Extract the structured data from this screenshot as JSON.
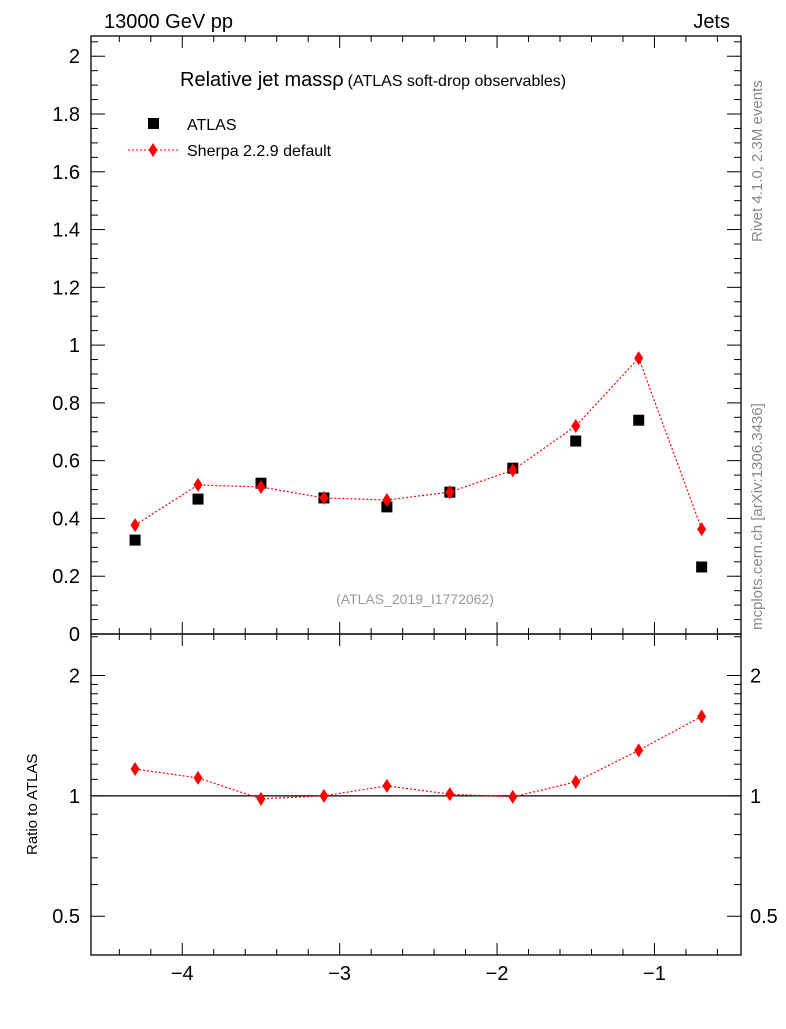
{
  "header": {
    "left": "13000 GeV pp",
    "right": "Jets"
  },
  "side_text": {
    "rivet": "Rivet 4.1.0,  2.3M events",
    "source": "mcplots.cern.ch [arXiv:1306.3436]"
  },
  "chart_data": [
    {
      "type": "scatter",
      "title": "Relative jet massρ",
      "subtitle": "(ATLAS soft-drop observables)",
      "annotation": "(ATLAS_2019_I1772062)",
      "xlabel": "",
      "ylabel": "",
      "xlim": [
        -4.58,
        -0.45
      ],
      "ylim": [
        0,
        2.07
      ],
      "yticks": [
        "0",
        "0.2",
        "0.4",
        "0.6",
        "0.8",
        "1",
        "1.2",
        "1.4",
        "1.6",
        "1.8",
        "2"
      ],
      "legend_position": "top-left",
      "x": [
        -4.3,
        -3.9,
        -3.5,
        -3.1,
        -2.7,
        -2.3,
        -1.9,
        -1.5,
        -1.1,
        -0.7
      ],
      "series": [
        {
          "name": "ATLAS",
          "marker": "square",
          "color": "#000000",
          "line": false,
          "values": [
            0.325,
            0.467,
            0.522,
            0.471,
            0.44,
            0.491,
            0.574,
            0.668,
            0.74,
            0.232
          ]
        },
        {
          "name": "Sherpa 2.2.9 default",
          "marker": "diamond",
          "color": "#ff0000",
          "line": "dotted",
          "values": [
            0.377,
            0.516,
            0.509,
            0.471,
            0.464,
            0.491,
            0.567,
            0.72,
            0.955,
            0.363
          ]
        }
      ]
    },
    {
      "type": "line",
      "ylabel": "Ratio to ATLAS",
      "yscale": "log",
      "xlim": [
        -4.58,
        -0.45
      ],
      "ylim": [
        0.4,
        2.54
      ],
      "yticks": [
        "0.5",
        "1",
        "2"
      ],
      "xticks": [
        "−4",
        "−3",
        "−2",
        "−1"
      ],
      "reference_line": 1,
      "x": [
        -4.3,
        -3.9,
        -3.5,
        -3.1,
        -2.7,
        -2.3,
        -1.9,
        -1.5,
        -1.1,
        -0.7
      ],
      "series": [
        {
          "name": "Sherpa 2.2.9 default",
          "marker": "diamond",
          "color": "#ff0000",
          "line": "dotted",
          "values": [
            1.167,
            1.109,
            0.983,
            1.0,
            1.059,
            1.01,
            0.994,
            1.084,
            1.3,
            1.58
          ]
        }
      ]
    }
  ]
}
